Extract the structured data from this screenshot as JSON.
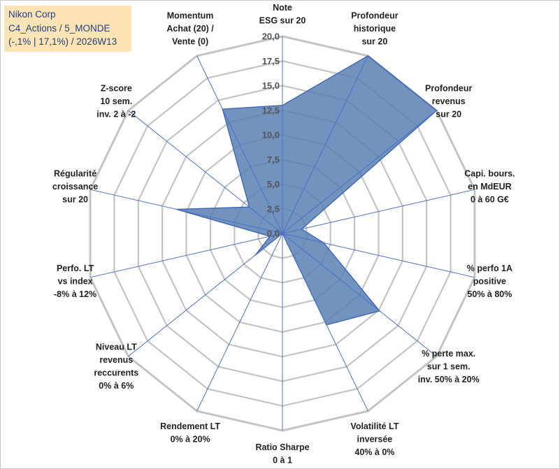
{
  "title_lines": [
    "Nikon Corp",
    "C4_Actions / 5_MONDE",
    "(-,1% | 17,1%) / 2026W13"
  ],
  "colors": {
    "grid": "#c4c4c4",
    "spoke": "#4a72c4",
    "fill": "#5b80b4",
    "fill_opacity": 0.85,
    "series_stroke": "#3f66b6",
    "title_bg": "#fce4b4",
    "title_text": "#1f3f87"
  },
  "chart_data": {
    "type": "radar",
    "title": "",
    "rmin": 0,
    "rmax": 20,
    "tick_step": 2.5,
    "tick_labels": [
      "0,0",
      "2,5",
      "5,0",
      "7,5",
      "10,0",
      "12,5",
      "15,0",
      "17,5",
      "20,0"
    ],
    "categories": [
      [
        "Note",
        "ESG sur 20"
      ],
      [
        "Profondeur",
        "historique",
        "sur 20"
      ],
      [
        "Profondeur",
        "revenus",
        "sur 20"
      ],
      [
        "Capi. bours.",
        "en MdEUR",
        "0 à 60 G€"
      ],
      [
        "% perfo 1A",
        "positive",
        "50% à 80%"
      ],
      [
        "% perte max.",
        "sur 1 sem.",
        "inv. 50% à 20%"
      ],
      [
        "Volatilité LT",
        "inversée",
        "40% à 0%"
      ],
      [
        "Ratio Sharpe",
        "0 à 1"
      ],
      [
        "Rendement LT",
        "0% à 20%"
      ],
      [
        "Niveau LT",
        "revenus",
        "reccurents",
        "0% à 6%"
      ],
      [
        "Perfo. LT",
        "vs index",
        "-8% à 12%"
      ],
      [
        "Régularité",
        "croissance",
        "sur 20"
      ],
      [
        "Z-score",
        "10 sem.",
        "inv. 2 à -2"
      ],
      [
        "Momentum",
        "Achat (20) /",
        "Vente (0)"
      ]
    ],
    "series": [
      {
        "name": "Nikon Corp",
        "values": [
          13.0,
          20.0,
          20.0,
          2.0,
          4.3,
          12.6,
          10.3,
          0.0,
          0.0,
          3.5,
          1.3,
          11.0,
          4.3,
          14.0
        ]
      }
    ],
    "grid": true,
    "legend": "none"
  }
}
